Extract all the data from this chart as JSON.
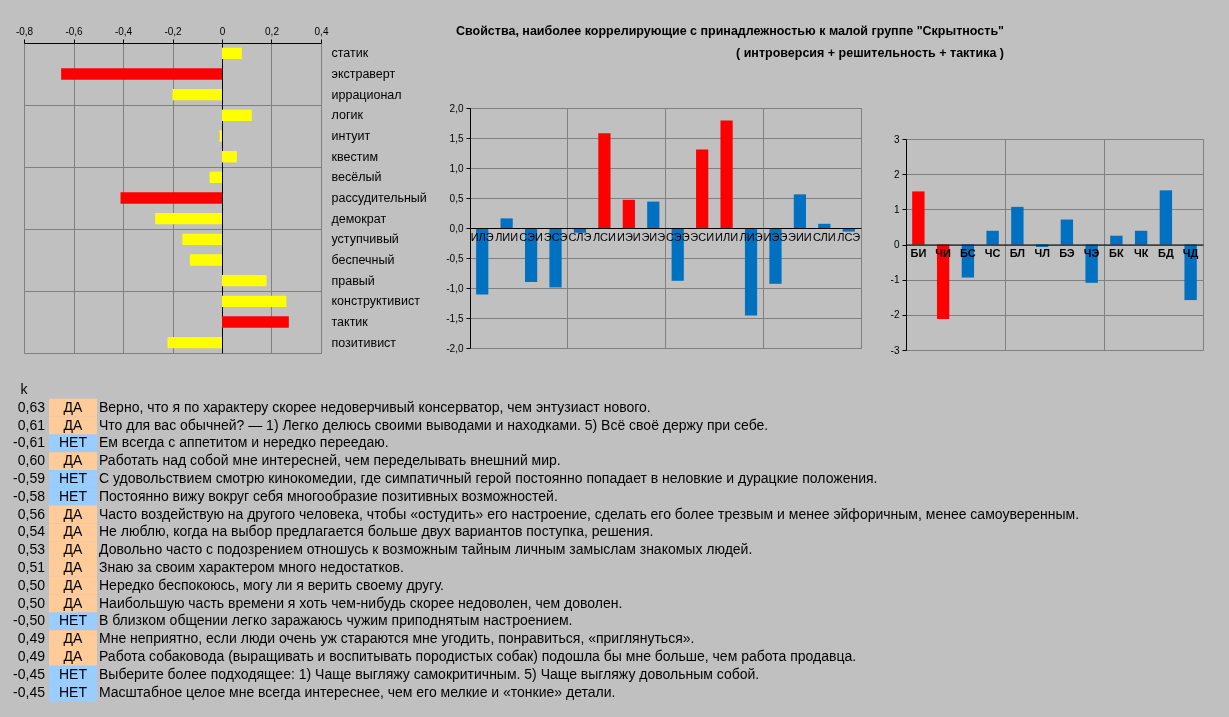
{
  "chart_data": [
    {
      "type": "bar",
      "orientation": "horizontal",
      "categories": [
        "статик",
        "экстраверт",
        "иррационал",
        "логик",
        "интуит",
        "квестим",
        "весёлый",
        "рассудительный",
        "демократ",
        "уступчивый",
        "беспечный",
        "правый",
        "конструктивист",
        "тактик",
        "позитивист"
      ],
      "values": [
        0.08,
        -0.65,
        -0.2,
        0.12,
        -0.01,
        0.06,
        -0.05,
        -0.41,
        -0.27,
        -0.16,
        -0.13,
        0.18,
        0.26,
        0.27,
        -0.22
      ],
      "colors": [
        "#ffff00",
        "#ff0000",
        "#ffff00",
        "#ffff00",
        "#ffff00",
        "#ffff00",
        "#ffff00",
        "#ff0000",
        "#ffff00",
        "#ffff00",
        "#ffff00",
        "#ffff00",
        "#ffff00",
        "#ff0000",
        "#ffff00"
      ],
      "xlim": [
        -0.8,
        0.4
      ],
      "xticks": [
        {
          "value": -0.8,
          "label": "-0,8"
        },
        {
          "value": -0.6,
          "label": "-0,6"
        },
        {
          "value": -0.4,
          "label": "-0,4"
        },
        {
          "value": -0.2,
          "label": "-0,2"
        },
        0,
        {
          "value": 0.2,
          "label": "0,2"
        },
        {
          "value": 0.4,
          "label": "0,4"
        }
      ],
      "grid": true
    },
    {
      "type": "bar",
      "title": "Свойства, наиболее коррелирующие с принадлежностью к малой группе \"Скрытность\"",
      "subtitle": "( интроверсия + решительность + тактика )",
      "categories": [
        "ИЛЭ",
        "ЛИИ",
        "СЭИ",
        "ЭСЭ",
        "СЛЭ",
        "ЛСИ",
        "ИЭИ",
        "ЭИЭ",
        "СЭЭ",
        "ЭСИ",
        "ИЛИ",
        "ЛИЭ",
        "ИЭЭ",
        "ЭИИ",
        "СЛИ",
        "ЛСЭ"
      ],
      "values": [
        -1.11,
        0.16,
        -0.9,
        -0.99,
        -0.08,
        1.58,
        0.47,
        0.44,
        -0.88,
        1.31,
        1.79,
        -1.46,
        -0.93,
        0.56,
        0.07,
        -0.06
      ],
      "colors": [
        "#0070c0",
        "#0070c0",
        "#0070c0",
        "#0070c0",
        "#0070c0",
        "#ff0000",
        "#ff0000",
        "#0070c0",
        "#0070c0",
        "#ff0000",
        "#ff0000",
        "#0070c0",
        "#0070c0",
        "#0070c0",
        "#0070c0",
        "#0070c0"
      ],
      "ylim": [
        -2,
        2
      ],
      "yticks": [
        {
          "value": -2,
          "label": "-2,0"
        },
        {
          "value": -1.5,
          "label": "-1,5"
        },
        {
          "value": -1,
          "label": "-1,0"
        },
        {
          "value": -0.5,
          "label": "-0,5"
        },
        {
          "value": 0,
          "label": "0,0"
        },
        {
          "value": 0.5,
          "label": "0,5"
        },
        {
          "value": 1,
          "label": "1,0"
        },
        {
          "value": 1.5,
          "label": "1,5"
        },
        {
          "value": 2,
          "label": "2,0"
        }
      ],
      "grid": true
    },
    {
      "type": "bar",
      "categories": [
        "БИ",
        "ЧИ",
        "БС",
        "ЧС",
        "БЛ",
        "ЧЛ",
        "БЭ",
        "ЧЭ",
        "БК",
        "ЧК",
        "БД",
        "ЧД"
      ],
      "values": [
        1.51,
        -2.12,
        -0.94,
        0.39,
        1.07,
        -0.07,
        0.71,
        -1.09,
        0.25,
        0.39,
        1.54,
        -1.58
      ],
      "colors": [
        "#ff0000",
        "#ff0000",
        "#0070c0",
        "#0070c0",
        "#0070c0",
        "#0070c0",
        "#0070c0",
        "#0070c0",
        "#0070c0",
        "#0070c0",
        "#0070c0",
        "#0070c0"
      ],
      "ylim": [
        -3,
        3
      ],
      "yticks": [
        -3,
        -2,
        -1,
        0,
        1,
        2,
        3
      ],
      "grid": true
    },
    {
      "type": "other",
      "annotations": [
        "k",
        "0,63",
        "ДА",
        "Верно, что я по характеру скорее недоверчивый консерватор, чем энтузиаст нового.",
        "0,61",
        "ДА",
        "Что для вас обычней? — 1) Легко делюсь своими выводами и находками. 5) Всё своё держу при себе.",
        "-0,61",
        "НЕТ",
        "Ем всегда с аппетитом и нередко переедаю.",
        "0,60",
        "ДА",
        "Работать над собой мне интересней, чем переделывать внешний мир.",
        "-0,59",
        "НЕТ",
        "С удовольствием смотрю кинокомедии, где симпатичный герой постоянно попадает в неловкие и дурацкие положения.",
        "-0,58",
        "НЕТ",
        "Постоянно вижу вокруг себя многообразие позитивных возможностей.",
        "0,56",
        "ДА",
        "Часто воздействую на другого человека, чтобы «остудить» его настроение, сделать его более трезвым и менее эйфоричным, менее самоуверенным.",
        "0,54",
        "ДА",
        "Не люблю, когда на выбор предлагается больше двух вариантов поступка, решения.",
        "0,53",
        "ДА",
        "Довольно часто с подозрением отношусь к возможным тайным личным замыслам знакомых людей.",
        "0,51",
        "ДА",
        "Знаю за своим характером много недостатков.",
        "0,50",
        "ДА",
        "Нередко беспокоюсь, могу ли я верить своему другу.",
        "0,50",
        "ДА",
        "Наибольшую часть времени я хоть чем-нибудь скорее недоволен, чем доволен.",
        "-0,50",
        "НЕТ",
        "В близком общении легко заражаюсь чужим приподнятым настроением.",
        "0,49",
        "ДА",
        "Мне неприятно, если люди очень уж стараются мне угодить, понравиться, «приглянуться».",
        "0,49",
        "ДА",
        "Работа собаковода (выращивать и воспитывать породистых собак) подошла бы мне больше, чем работа продавца.",
        "-0,45",
        "НЕТ",
        "Выберите более подходящее: 1) Чаще выгляжу самокритичным. 5) Чаще выгляжу довольным собой.",
        "-0,45",
        "НЕТ",
        "Масштабное целое мне всегда интереснее, чем его мелкие и «тонкие» детали."
      ],
      "colors": [
        "#ffcc99",
        "#ffcc99",
        "#99ccff",
        "#ffcc99",
        "#99ccff",
        "#99ccff",
        "#ffcc99",
        "#ffcc99",
        "#ffcc99",
        "#ffcc99",
        "#ffcc99",
        "#ffcc99",
        "#99ccff",
        "#ffcc99",
        "#ffcc99",
        "#99ccff",
        "#99ccff"
      ]
    }
  ]
}
